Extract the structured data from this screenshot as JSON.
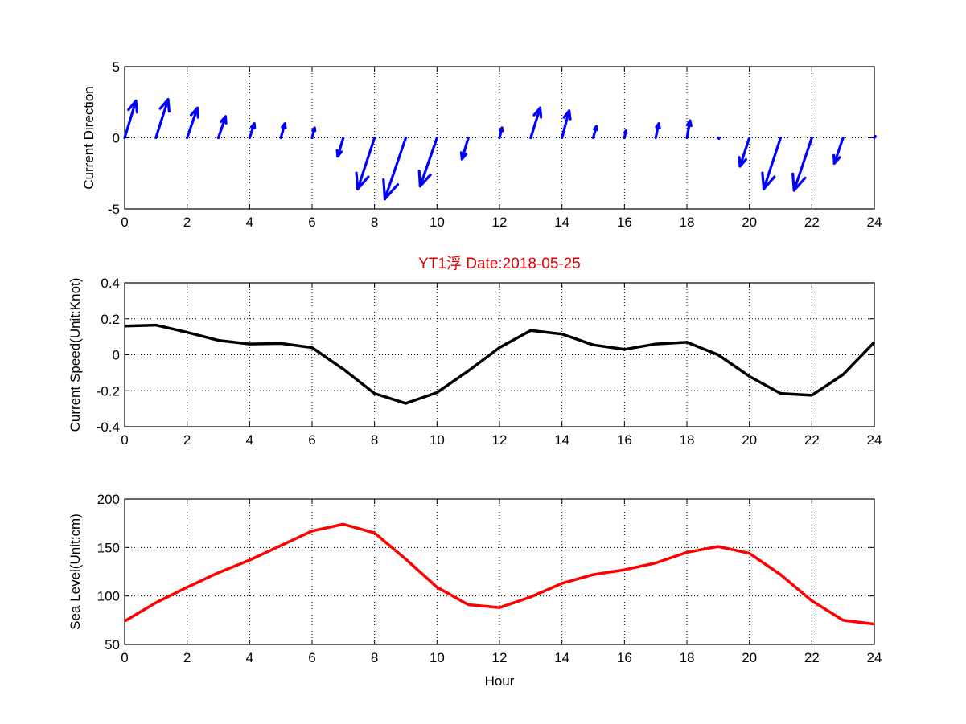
{
  "figure_title": "YT1浮    Date:2018-05-25",
  "title_color": "#e00000",
  "chart_data": [
    {
      "type": "quiver",
      "ylabel": "Current Direction",
      "xlabel": "",
      "xlim": [
        0,
        24
      ],
      "ylim": [
        -5,
        5
      ],
      "xticks": [
        0,
        2,
        4,
        6,
        8,
        10,
        12,
        14,
        16,
        18,
        20,
        22,
        24
      ],
      "yticks": [
        -5,
        0,
        5
      ],
      "grid": true,
      "color": "#0000ff",
      "x": [
        0,
        1,
        2,
        3,
        4,
        5,
        6,
        7,
        8,
        9,
        10,
        11,
        12,
        13,
        14,
        15,
        16,
        17,
        18,
        19,
        20,
        21,
        22,
        23,
        24
      ],
      "u": [
        0.36,
        0.39,
        0.33,
        0.23,
        0.15,
        0.13,
        0.08,
        -0.18,
        -0.54,
        -0.67,
        -0.54,
        -0.2,
        0.08,
        0.3,
        0.23,
        0.1,
        0.05,
        0.1,
        0.1,
        0.03,
        -0.3,
        -0.54,
        -0.57,
        -0.28,
        0.03
      ],
      "v": [
        2.6,
        2.7,
        2.1,
        1.5,
        1.0,
        1.0,
        0.7,
        -1.3,
        -3.6,
        -4.3,
        -3.4,
        -1.5,
        0.7,
        2.1,
        1.9,
        0.8,
        0.5,
        1.0,
        1.2,
        -0.05,
        -2.0,
        -3.6,
        -3.7,
        -1.8,
        0.1
      ]
    },
    {
      "type": "line",
      "ylabel": "Current Speed(Unit:Knot)",
      "xlabel": "",
      "xlim": [
        0,
        24
      ],
      "ylim": [
        -0.4,
        0.4
      ],
      "xticks": [
        0,
        2,
        4,
        6,
        8,
        10,
        12,
        14,
        16,
        18,
        20,
        22,
        24
      ],
      "yticks": [
        -0.4,
        -0.2,
        0,
        0.2,
        0.4
      ],
      "ytick_labels": [
        "-0.4",
        "-0.2",
        "0",
        "0.2",
        "0.4"
      ],
      "grid": true,
      "color": "#000000",
      "x": [
        0,
        1,
        2,
        3,
        4,
        5,
        6,
        7,
        8,
        9,
        10,
        11,
        12,
        13,
        14,
        15,
        16,
        17,
        18,
        19,
        20,
        21,
        22,
        23,
        24
      ],
      "y": [
        0.16,
        0.165,
        0.125,
        0.08,
        0.06,
        0.063,
        0.04,
        -0.08,
        -0.215,
        -0.27,
        -0.21,
        -0.09,
        0.04,
        0.135,
        0.115,
        0.055,
        0.03,
        0.06,
        0.07,
        0.0,
        -0.12,
        -0.215,
        -0.225,
        -0.11,
        0.07
      ]
    },
    {
      "type": "line",
      "ylabel": "Sea Level(Unit:cm)",
      "xlabel": "Hour",
      "xlim": [
        0,
        24
      ],
      "ylim": [
        50,
        200
      ],
      "xticks": [
        0,
        2,
        4,
        6,
        8,
        10,
        12,
        14,
        16,
        18,
        20,
        22,
        24
      ],
      "yticks": [
        50,
        100,
        150,
        200
      ],
      "grid": true,
      "color": "#ff0000",
      "x": [
        0,
        1,
        2,
        3,
        4,
        5,
        6,
        7,
        8,
        9,
        10,
        11,
        12,
        13,
        14,
        15,
        16,
        17,
        18,
        19,
        20,
        21,
        22,
        23,
        24
      ],
      "y": [
        74,
        93,
        109,
        124,
        137,
        152,
        167,
        174,
        165,
        138,
        109,
        91,
        88,
        99,
        113,
        122,
        127,
        134,
        145,
        151,
        144,
        122,
        95,
        75,
        71
      ]
    }
  ]
}
